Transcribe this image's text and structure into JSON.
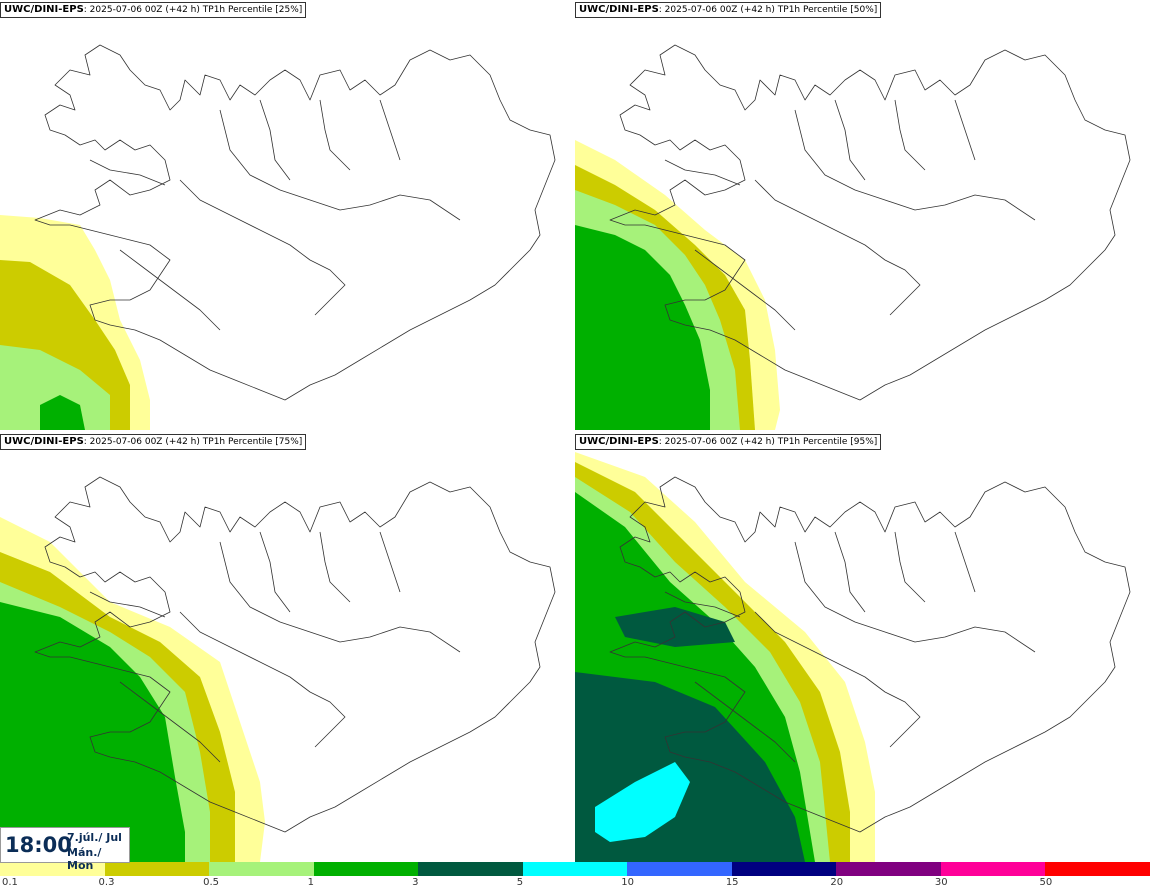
{
  "panels": [
    {
      "model": "UWC/DINI-EPS",
      "run": "2025-07-06 00Z (+42 h)",
      "label": "TP1h Percentile [25%]"
    },
    {
      "model": "UWC/DINI-EPS",
      "run": "2025-07-06 00Z (+42 h)",
      "label": "TP1h Percentile [50%]"
    },
    {
      "model": "UWC/DINI-EPS",
      "run": "2025-07-06 00Z (+42 h)",
      "label": "TP1h Percentile [75%]"
    },
    {
      "model": "UWC/DINI-EPS",
      "run": "2025-07-06 00Z (+42 h)",
      "label": "TP1h Percentile [95%]"
    }
  ],
  "time": {
    "hour": "18:00",
    "date": "7.júl./ Jul",
    "weekday": "Mán./ Mon"
  },
  "legend": {
    "ticks": [
      "0.1",
      "0.3",
      "0.5",
      "1",
      "3",
      "5",
      "10",
      "15",
      "20",
      "30",
      "50"
    ],
    "colors": [
      "#ffff99",
      "#cccc00",
      "#a6f27a",
      "#00b000",
      "#00593f",
      "#00ffff",
      "#3366ff",
      "#000080",
      "#800080",
      "#ff0099",
      "#ff0000"
    ]
  }
}
